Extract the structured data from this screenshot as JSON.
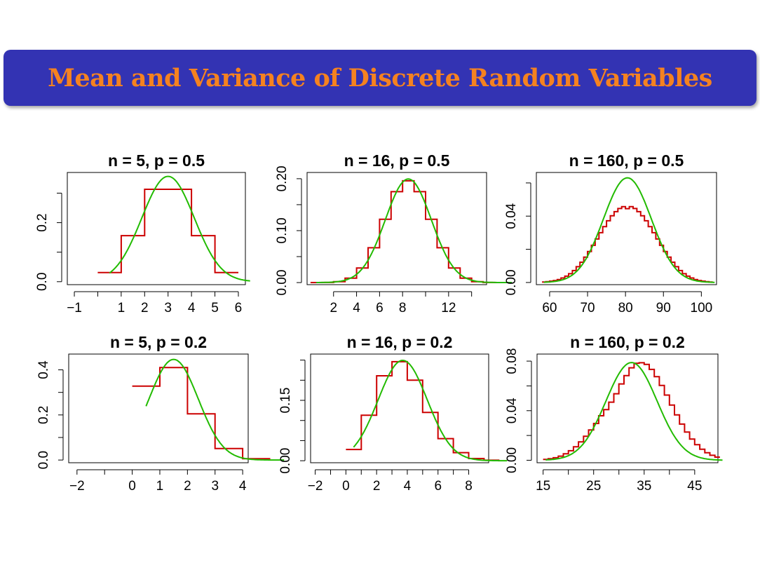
{
  "slide": {
    "title": "Mean and Variance of Discrete Random Variables"
  },
  "colors": {
    "banner": "#3333b3",
    "title": "#f58220",
    "pmf": "#cc0000",
    "normal": "#22bb00"
  },
  "chart_data": [
    {
      "type": "line",
      "title": "n = 5, p = 0.5",
      "n": 5,
      "p": 0.5,
      "xlim": [
        -1.3,
        6.3
      ],
      "ylim": [
        -0.01,
        0.37
      ],
      "x_ticks": [
        -1,
        0,
        1,
        2,
        3,
        4,
        5,
        6
      ],
      "x_tick_labels": [
        "−1",
        "",
        "1",
        "2",
        "3",
        "4",
        "5",
        "6"
      ],
      "y_ticks": [
        0,
        0.1,
        0.2,
        0.3
      ],
      "y_tick_labels": [
        "0.0",
        "",
        "0.2",
        ""
      ],
      "series": [
        {
          "x": [
            0,
            1,
            2,
            3,
            4,
            5
          ],
          "values": [
            0.031,
            0.156,
            0.313,
            0.313,
            0.156,
            0.031
          ]
        },
        {
          "mean": 2.5,
          "sd": 1.118
        }
      ]
    },
    {
      "type": "line",
      "title": "n = 16, p = 0.5",
      "n": 16,
      "p": 0.5,
      "xlim": [
        -0.3,
        15.3
      ],
      "ylim": [
        -0.004,
        0.212
      ],
      "x_ticks": [
        2,
        4,
        6,
        8,
        10,
        12,
        14
      ],
      "x_tick_labels": [
        "2",
        "4",
        "6",
        "8",
        "",
        "12",
        ""
      ],
      "y_ticks": [
        0,
        0.05,
        0.1,
        0.15,
        0.2
      ],
      "y_tick_labels": [
        "0.00",
        "",
        "0.10",
        "",
        "0.20"
      ],
      "series": [
        {
          "x": [
            0,
            1,
            2,
            3,
            4,
            5,
            6,
            7,
            8,
            9,
            10,
            11,
            12,
            13,
            14,
            15,
            16
          ],
          "values": [
            1.5e-05,
            0.00024,
            0.0018,
            0.0085,
            0.028,
            0.067,
            0.122,
            0.175,
            0.196,
            0.175,
            0.122,
            0.067,
            0.028,
            0.0085,
            0.0018,
            0.00024,
            1.5e-05
          ]
        },
        {
          "mean": 8,
          "sd": 2
        }
      ]
    },
    {
      "type": "line",
      "title": "n = 160, p = 0.5",
      "n": 160,
      "p": 0.5,
      "xlim": [
        56.5,
        104
      ],
      "ylim": [
        -0.0013,
        0.0663
      ],
      "x_ticks": [
        60,
        70,
        80,
        90,
        100
      ],
      "x_tick_labels": [
        "60",
        "70",
        "80",
        "90",
        "100"
      ],
      "y_ticks": [
        0,
        0.02,
        0.04,
        0.06
      ],
      "y_tick_labels": [
        "0.00",
        "",
        "0.04",
        ""
      ],
      "series": [
        {
          "x": [
            58,
            59,
            60,
            61,
            62,
            63,
            64,
            65,
            66,
            67,
            68,
            69,
            70,
            71,
            72,
            73,
            74,
            75,
            76,
            77,
            78,
            79,
            80,
            81,
            82,
            83,
            84,
            85,
            86,
            87,
            88,
            89,
            90,
            91,
            92,
            93,
            94,
            95,
            96,
            97,
            98,
            99,
            100,
            101,
            102
          ],
          "values": [
            0.0003,
            0.0005,
            0.0008,
            0.0012,
            0.0018,
            0.0027,
            0.0038,
            0.0053,
            0.0072,
            0.0095,
            0.0122,
            0.0153,
            0.0187,
            0.0224,
            0.0262,
            0.03,
            0.0337,
            0.0372,
            0.0402,
            0.0427,
            0.0446,
            0.0457,
            0.0445,
            0.0457,
            0.0446,
            0.0427,
            0.0402,
            0.0372,
            0.0337,
            0.03,
            0.0262,
            0.0224,
            0.0187,
            0.0153,
            0.0122,
            0.0095,
            0.0072,
            0.0053,
            0.0038,
            0.0027,
            0.0018,
            0.0012,
            0.0008,
            0.0005,
            0.0003
          ]
        },
        {
          "mean": 80,
          "sd": 6.325
        }
      ]
    },
    {
      "type": "line",
      "title": "n = 5, p = 0.2",
      "n": 5,
      "p": 0.2,
      "xlim": [
        -2.3,
        4.2
      ],
      "ylim": [
        -0.012,
        0.47
      ],
      "x_ticks": [
        -2,
        -1,
        0,
        1,
        2,
        3,
        4
      ],
      "x_tick_labels": [
        "−2",
        "",
        "0",
        "1",
        "2",
        "3",
        "4"
      ],
      "y_ticks": [
        0,
        0.1,
        0.2,
        0.3,
        0.4
      ],
      "y_tick_labels": [
        "0.0",
        "",
        "0.2",
        "",
        "0.4"
      ],
      "series": [
        {
          "x": [
            0,
            1,
            2,
            3,
            4
          ],
          "values": [
            0.328,
            0.41,
            0.205,
            0.051,
            0.006
          ]
        },
        {
          "mean": 1,
          "sd": 0.894
        }
      ]
    },
    {
      "type": "line",
      "title": "n = 16, p = 0.2",
      "n": 16,
      "p": 0.2,
      "xlim": [
        -2.3,
        9.3
      ],
      "ylim": [
        -0.005,
        0.265
      ],
      "x_ticks": [
        -2,
        -1,
        0,
        1,
        2,
        3,
        4,
        5,
        6,
        7,
        8
      ],
      "x_tick_labels": [
        "−2",
        "",
        "0",
        "",
        "2",
        "",
        "4",
        "",
        "6",
        "",
        "8"
      ],
      "y_ticks": [
        0,
        0.05,
        0.1,
        0.15,
        0.2,
        0.25
      ],
      "y_tick_labels": [
        "0.00",
        "",
        "",
        "0.15",
        "",
        ""
      ],
      "series": [
        {
          "x": [
            0,
            1,
            2,
            3,
            4,
            5,
            6,
            7,
            8,
            9
          ],
          "values": [
            0.028,
            0.113,
            0.211,
            0.246,
            0.2,
            0.12,
            0.055,
            0.02,
            0.0055,
            0.0012
          ]
        },
        {
          "mean": 3.2,
          "sd": 1.6
        }
      ]
    },
    {
      "type": "line",
      "title": "n = 160, p = 0.2",
      "n": 160,
      "p": 0.2,
      "xlim": [
        13.8,
        49.6
      ],
      "ylim": [
        -0.002,
        0.0857
      ],
      "x_ticks": [
        15,
        20,
        25,
        30,
        35,
        40,
        45
      ],
      "x_tick_labels": [
        "15",
        "",
        "25",
        "",
        "35",
        "",
        "45"
      ],
      "y_ticks": [
        0,
        0.02,
        0.04,
        0.06,
        0.08
      ],
      "y_tick_labels": [
        "0.00",
        "",
        "0.04",
        "",
        "0.08"
      ],
      "series": [
        {
          "x": [
            15,
            16,
            17,
            18,
            19,
            20,
            21,
            22,
            23,
            24,
            25,
            26,
            27,
            28,
            29,
            30,
            31,
            32,
            33,
            34,
            35,
            36,
            37,
            38,
            39,
            40,
            41,
            42,
            43,
            44,
            45,
            46,
            47,
            48,
            49
          ],
          "values": [
            0.0007,
            0.0012,
            0.002,
            0.0033,
            0.0052,
            0.0077,
            0.0109,
            0.0148,
            0.0194,
            0.0245,
            0.0297,
            0.0359,
            0.0409,
            0.0469,
            0.0537,
            0.0616,
            0.0683,
            0.0746,
            0.0783,
            0.0787,
            0.0773,
            0.0733,
            0.0675,
            0.0604,
            0.0526,
            0.0445,
            0.0366,
            0.0292,
            0.0227,
            0.0171,
            0.0126,
            0.0089,
            0.0061,
            0.004,
            0.0025
          ]
        },
        {
          "mean": 32,
          "sd": 5.06
        }
      ]
    }
  ]
}
